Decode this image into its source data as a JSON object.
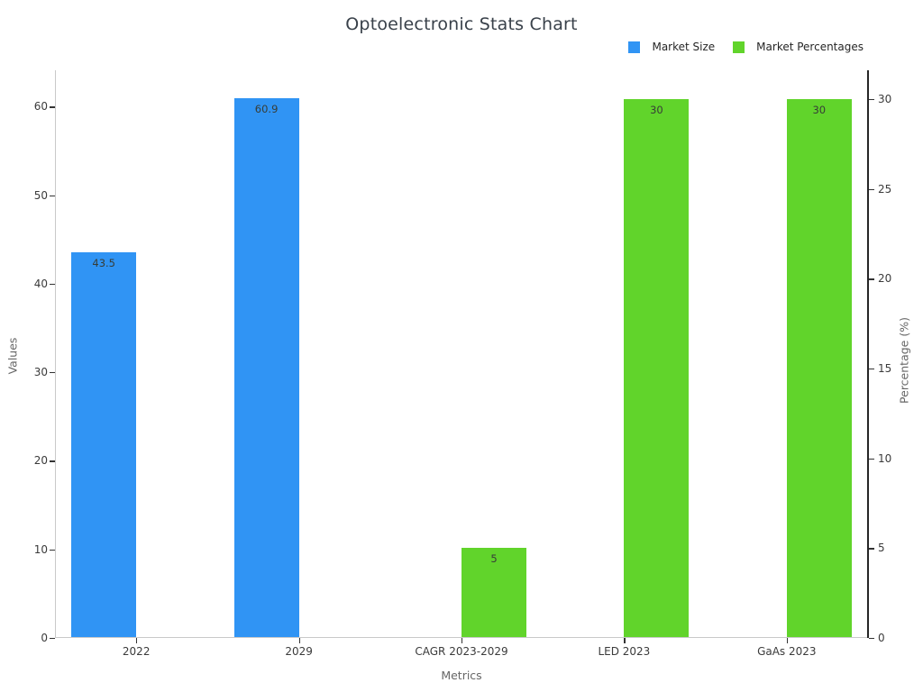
{
  "chart_data": {
    "type": "bar",
    "title": "Optoelectronic Stats Chart",
    "xlabel": "Metrics",
    "ylabel_left": "Values",
    "ylabel_right": "Percentage (%)",
    "categories": [
      "2022",
      "2029",
      "CAGR 2023-2029",
      "LED 2023",
      "GaAs 2023"
    ],
    "series": [
      {
        "name": "Market Size",
        "axis": "left",
        "color": "#3094F4",
        "values": [
          43.5,
          60.9,
          null,
          null,
          null
        ],
        "labels": [
          "43.5",
          "60.9",
          "",
          "",
          ""
        ]
      },
      {
        "name": "Market Percentages",
        "axis": "right",
        "color": "#61D42B",
        "values": [
          null,
          null,
          5,
          30,
          30
        ],
        "labels": [
          "",
          "",
          "5",
          "30",
          "30"
        ]
      }
    ],
    "axes": {
      "left": {
        "ticks": [
          0,
          10,
          20,
          30,
          40,
          50,
          60
        ],
        "max": 64.1
      },
      "right": {
        "ticks": [
          0,
          5,
          10,
          15,
          20,
          25,
          30
        ],
        "max": 31.6
      }
    },
    "legend_position": "top-right",
    "grid": false
  }
}
